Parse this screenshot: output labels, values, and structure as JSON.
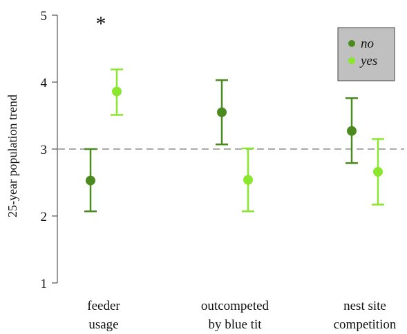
{
  "chart_data": {
    "type": "scatter",
    "title": "",
    "xlabel": "",
    "ylabel": "25-year population trend",
    "ylim": [
      1,
      5
    ],
    "yticks": [
      1,
      2,
      3,
      4,
      5
    ],
    "reference_line": 3,
    "grid": false,
    "legend_position": "top-right",
    "categories": [
      [
        "feeder",
        "usage"
      ],
      [
        "outcompeted",
        "by blue tit"
      ],
      [
        "nest site",
        "competition"
      ]
    ],
    "series": [
      {
        "name": "no",
        "color": "#4a8a1e",
        "means": [
          2.53,
          3.55,
          3.27
        ],
        "lower": [
          2.07,
          3.07,
          2.79
        ],
        "upper": [
          3.0,
          4.03,
          3.76
        ]
      },
      {
        "name": "yes",
        "color": "#8ae62e",
        "means": [
          3.86,
          2.54,
          2.66
        ],
        "lower": [
          3.51,
          2.07,
          2.17
        ],
        "upper": [
          4.19,
          3.01,
          3.15
        ]
      }
    ],
    "annotations": [
      {
        "text": "*",
        "category_index": 0
      }
    ],
    "colors": {
      "reference_line": "#aaaaaa",
      "legend_background": "#c0c0c0"
    }
  }
}
